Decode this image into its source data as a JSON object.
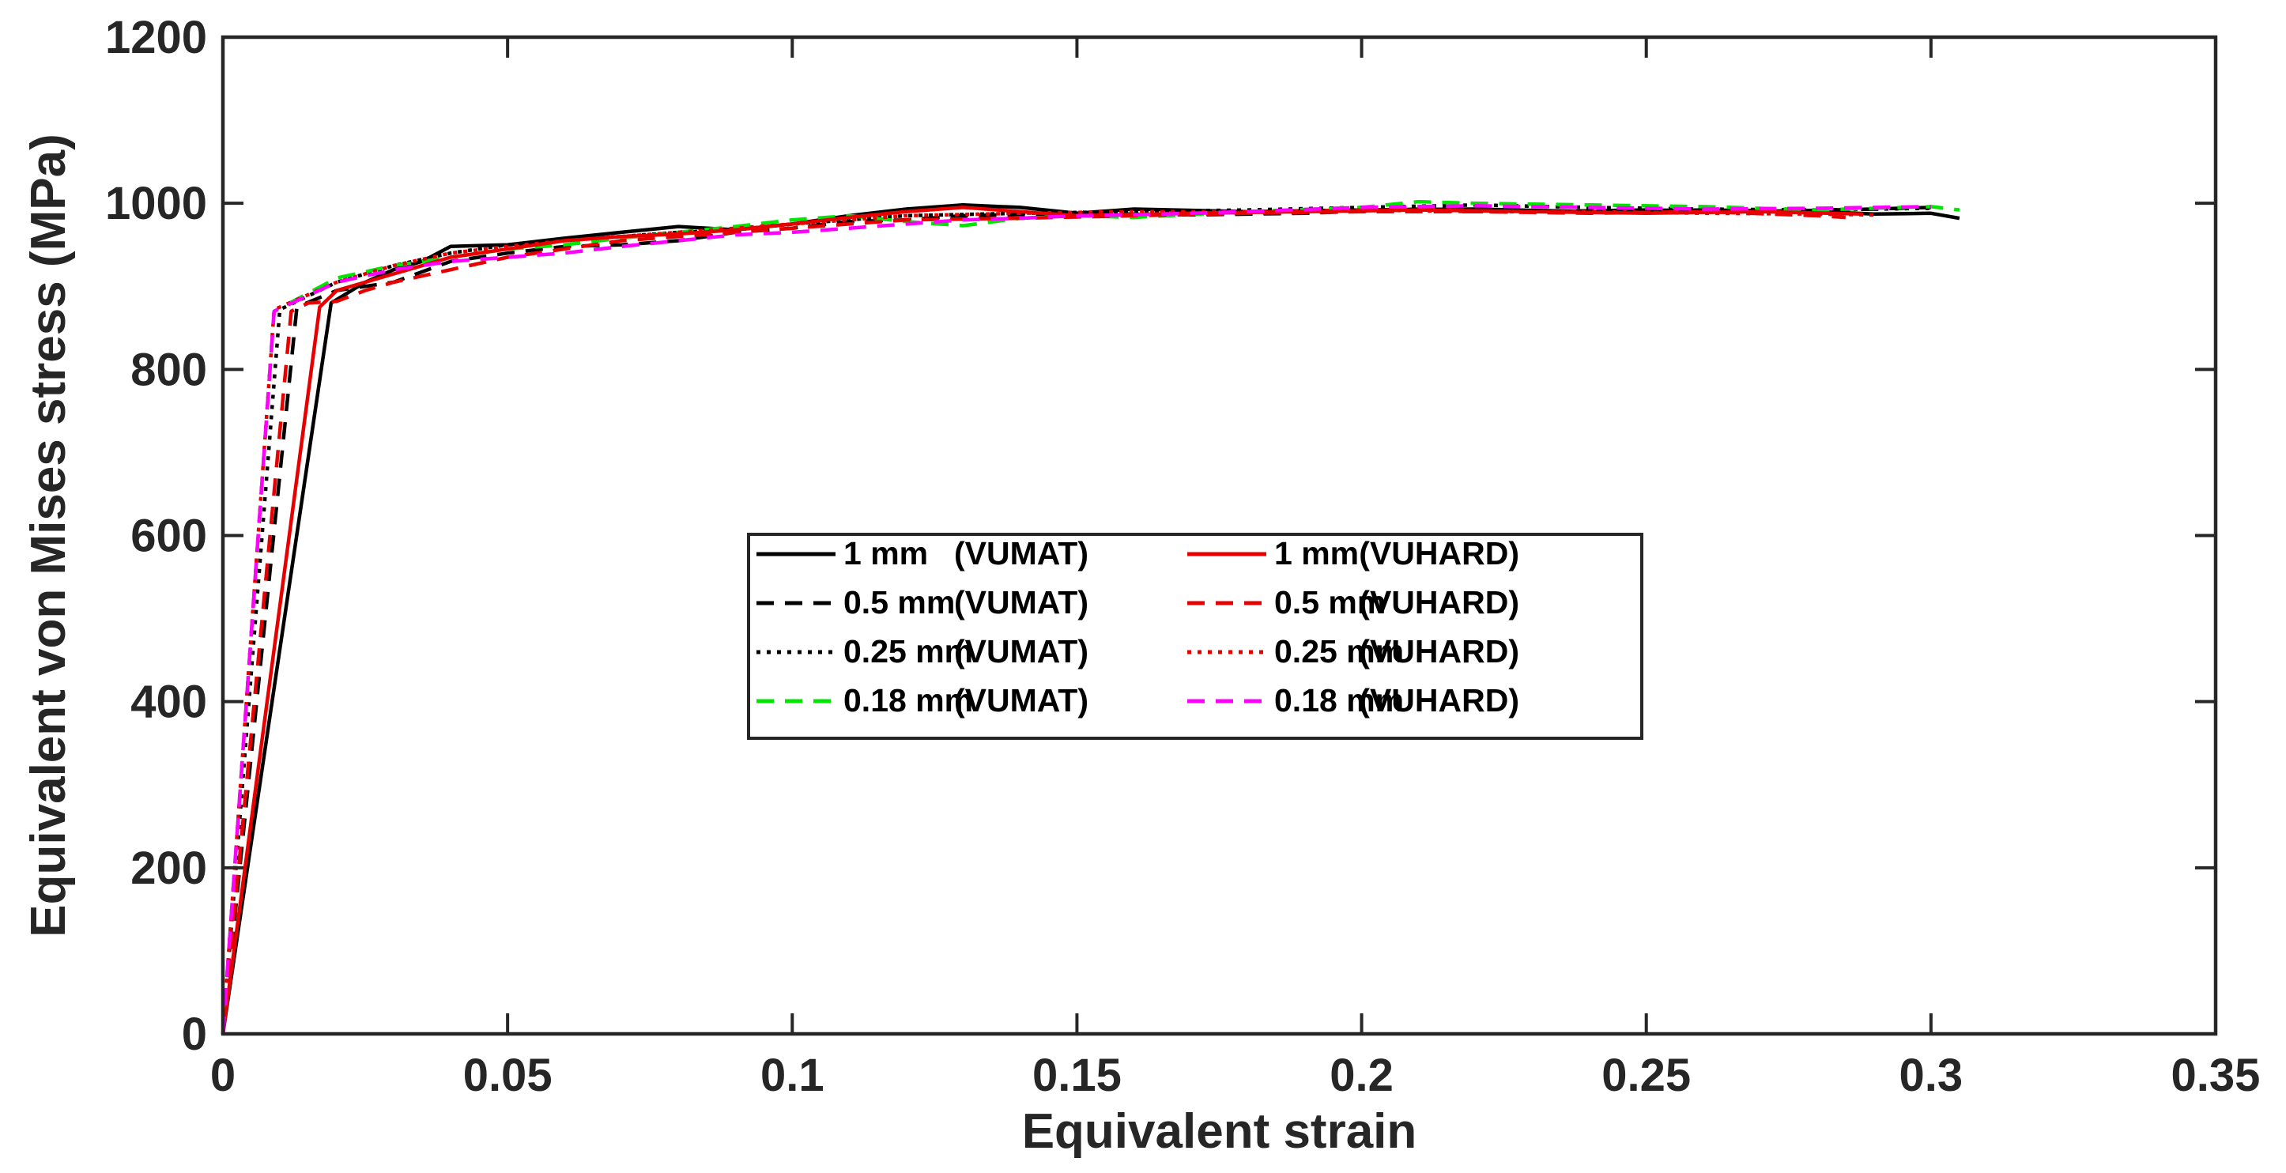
{
  "chart_data": {
    "type": "line",
    "title": "",
    "xlabel": "Equivalent strain",
    "ylabel": "Equivalent von Mises stress (MPa)",
    "xlim": [
      0,
      0.35
    ],
    "ylim": [
      0,
      1200
    ],
    "xticks": [
      "0",
      "0.05",
      "0.1",
      "0.15",
      "0.2",
      "0.25",
      "0.3",
      "0.35"
    ],
    "yticks": [
      "0",
      "200",
      "400",
      "600",
      "800",
      "1000",
      "1200"
    ],
    "grid": false,
    "legend_position": "center",
    "legend_columns": 2,
    "series": [
      {
        "name": "1 mm",
        "model": "(VUMAT)",
        "color": "#000000",
        "dash": "solid",
        "x": [
          0,
          0.019,
          0.025,
          0.03,
          0.035,
          0.04,
          0.05,
          0.06,
          0.07,
          0.08,
          0.09,
          0.1,
          0.11,
          0.12,
          0.13,
          0.14,
          0.15,
          0.16,
          0.18,
          0.2,
          0.22,
          0.24,
          0.26,
          0.28,
          0.29,
          0.3,
          0.305
        ],
        "y": [
          0,
          880,
          905,
          920,
          930,
          948,
          950,
          958,
          965,
          972,
          968,
          975,
          985,
          993,
          998,
          995,
          988,
          993,
          990,
          992,
          993,
          990,
          992,
          990,
          987,
          988,
          982
        ]
      },
      {
        "name": "0.5 mm",
        "model": "(VUMAT)",
        "color": "#000000",
        "dash": "long",
        "x": [
          0,
          0.013,
          0.02,
          0.03,
          0.04,
          0.05,
          0.06,
          0.07,
          0.08,
          0.09,
          0.1,
          0.11,
          0.12,
          0.13,
          0.15,
          0.17,
          0.19,
          0.21,
          0.23,
          0.25,
          0.27,
          0.29,
          0.3
        ],
        "y": [
          0,
          875,
          895,
          905,
          930,
          940,
          948,
          950,
          955,
          965,
          970,
          978,
          980,
          985,
          988,
          986,
          988,
          993,
          990,
          992,
          990,
          993,
          995
        ]
      },
      {
        "name": "0.25 mm",
        "model": "(VUMAT)",
        "color": "#000000",
        "dash": "dot",
        "x": [
          0,
          0.01,
          0.02,
          0.03,
          0.04,
          0.05,
          0.06,
          0.07,
          0.08,
          0.09,
          0.1,
          0.12,
          0.14,
          0.16,
          0.18,
          0.2,
          0.22,
          0.24,
          0.26,
          0.28,
          0.3
        ],
        "y": [
          0,
          872,
          905,
          925,
          940,
          950,
          955,
          960,
          965,
          968,
          975,
          985,
          988,
          990,
          992,
          995,
          998,
          995,
          993,
          992,
          994
        ]
      },
      {
        "name": "0.18 mm",
        "model": "(VUMAT)",
        "color": "#00e600",
        "dash": "long",
        "x": [
          0,
          0.009,
          0.02,
          0.03,
          0.04,
          0.05,
          0.06,
          0.07,
          0.08,
          0.09,
          0.1,
          0.11,
          0.12,
          0.13,
          0.14,
          0.15,
          0.16,
          0.18,
          0.2,
          0.21,
          0.22,
          0.24,
          0.26,
          0.28,
          0.3,
          0.305
        ],
        "y": [
          0,
          870,
          910,
          925,
          935,
          945,
          950,
          958,
          965,
          972,
          980,
          985,
          978,
          973,
          982,
          985,
          983,
          990,
          995,
          1002,
          1000,
          998,
          996,
          992,
          996,
          992
        ]
      },
      {
        "name": "1 mm",
        "model": "(VUHARD)",
        "color": "#e60000",
        "dash": "solid",
        "x": [
          0,
          0.017,
          0.02,
          0.03,
          0.04,
          0.05,
          0.06,
          0.07,
          0.08,
          0.09,
          0.1,
          0.11,
          0.12,
          0.13,
          0.14,
          0.15,
          0.17,
          0.19,
          0.21,
          0.23,
          0.25,
          0.27,
          0.288
        ],
        "y": [
          0,
          875,
          895,
          915,
          935,
          945,
          955,
          960,
          963,
          968,
          975,
          983,
          990,
          995,
          990,
          985,
          988,
          990,
          992,
          990,
          988,
          990,
          987
        ]
      },
      {
        "name": "0.5 mm",
        "model": "(VUHARD)",
        "color": "#e60000",
        "dash": "long",
        "x": [
          0,
          0.012,
          0.015,
          0.02,
          0.025,
          0.03,
          0.04,
          0.05,
          0.06,
          0.07,
          0.08,
          0.09,
          0.1,
          0.11,
          0.12,
          0.14,
          0.16,
          0.18,
          0.2,
          0.22,
          0.24,
          0.26,
          0.28,
          0.285
        ],
        "y": [
          0,
          870,
          880,
          882,
          895,
          905,
          920,
          935,
          945,
          955,
          960,
          965,
          970,
          975,
          980,
          982,
          985,
          988,
          990,
          990,
          988,
          990,
          985,
          983
        ]
      },
      {
        "name": "0.25 mm",
        "model": "(VUHARD)",
        "color": "#e60000",
        "dash": "dot",
        "x": [
          0,
          0.009,
          0.02,
          0.03,
          0.04,
          0.05,
          0.06,
          0.07,
          0.08,
          0.09,
          0.1,
          0.12,
          0.14,
          0.16,
          0.18,
          0.2,
          0.22,
          0.24,
          0.26,
          0.28,
          0.29
        ],
        "y": [
          0,
          872,
          905,
          925,
          940,
          948,
          955,
          960,
          965,
          970,
          975,
          985,
          988,
          990,
          990,
          992,
          990,
          990,
          988,
          987,
          986
        ]
      },
      {
        "name": "0.18 mm",
        "model": "(VUHARD)",
        "color": "#ff00ff",
        "dash": "long",
        "x": [
          0,
          0.009,
          0.02,
          0.03,
          0.04,
          0.05,
          0.06,
          0.07,
          0.08,
          0.09,
          0.1,
          0.11,
          0.12,
          0.13,
          0.14,
          0.15,
          0.16,
          0.18,
          0.2,
          0.22,
          0.24,
          0.26,
          0.28,
          0.3
        ],
        "y": [
          0,
          870,
          905,
          920,
          930,
          935,
          940,
          948,
          955,
          962,
          965,
          970,
          975,
          980,
          982,
          985,
          986,
          990,
          995,
          997,
          995,
          993,
          994,
          996
        ]
      }
    ]
  }
}
